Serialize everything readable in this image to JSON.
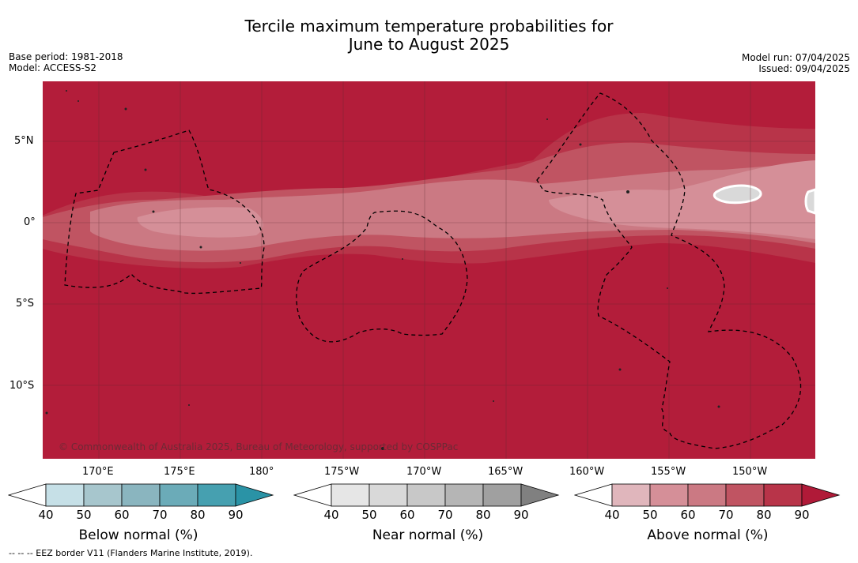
{
  "title_line1": "Tercile maximum temperature probabilities for",
  "title_line2": "June to August 2025",
  "base_period": "Base period: 1981-2018",
  "model": "Model: ACCESS-S2",
  "model_run": "Model run: 07/04/2025",
  "issued": "Issued: 09/04/2025",
  "lat_labels": [
    "5°N",
    "0°",
    "5°S",
    "10°S"
  ],
  "lon_labels": [
    "170°E",
    "175°E",
    "180°",
    "175°W",
    "170°W",
    "165°W",
    "160°W",
    "155°W",
    "150°W"
  ],
  "copyright": "© Commonwealth of Australia 2025, Bureau of Meteorology, supported by COSPPac",
  "colorbars": [
    {
      "label": "Below normal (%)",
      "ticks": [
        "40",
        "50",
        "60",
        "70",
        "80",
        "90"
      ],
      "colors": [
        "#ffffff",
        "#c6e0e7",
        "#a7c6cd",
        "#8ab5bf",
        "#6babb8",
        "#46a0b0",
        "#2a93a6"
      ]
    },
    {
      "label": "Near normal (%)",
      "ticks": [
        "40",
        "50",
        "60",
        "70",
        "80",
        "90"
      ],
      "colors": [
        "#ffffff",
        "#e6e6e6",
        "#d9d9d9",
        "#c8c8c8",
        "#b5b5b5",
        "#a0a0a0",
        "#808080"
      ]
    },
    {
      "label": "Above normal (%)",
      "ticks": [
        "40",
        "50",
        "60",
        "70",
        "80",
        "90"
      ],
      "colors": [
        "#ffffff",
        "#e0b6bc",
        "#d58f98",
        "#cb7983",
        "#c05462",
        "#b83449",
        "#b01a38"
      ]
    }
  ],
  "footer": "--  --  -- EEZ border V11 (Flanders Marine Institute, 2019).",
  "map_colors": {
    "c50": "#d58f98",
    "c60": "#cb7983",
    "c70": "#c05462",
    "c80": "#b83449",
    "c90": "#b31d3a",
    "near": "#d9d9d9"
  }
}
